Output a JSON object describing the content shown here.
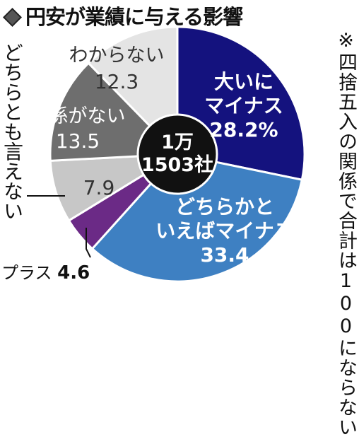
{
  "title": "円安が業績に与える影響",
  "note": "※四捨五入の関係で合計は100にならない",
  "chart_data": {
    "type": "pie",
    "center_label": [
      "1万",
      "1503社"
    ],
    "slices": [
      {
        "label": [
          "大いに",
          "マイナス"
        ],
        "value": 28.2,
        "value_text": "28.2%",
        "color": "#14127e",
        "text_color": "#ffffff"
      },
      {
        "label": [
          "どちらかと",
          "いえばマイナス"
        ],
        "value": 33.4,
        "value_text": "33.4",
        "color": "#3e80c2",
        "text_color": "#ffffff"
      },
      {
        "label": [
          "プラス"
        ],
        "value": 4.6,
        "value_text": "4.6",
        "color": "#6b2a86",
        "text_color": "#ffffff"
      },
      {
        "label": [
          "どちらとも言えない"
        ],
        "value": 7.9,
        "value_text": "7.9",
        "color": "#c7c7c7",
        "text_color": "#333333"
      },
      {
        "label": [
          "関係がない"
        ],
        "value": 13.5,
        "value_text": "13.5",
        "color": "#6e6e6e",
        "text_color": "#ffffff"
      },
      {
        "label": [
          "わからない"
        ],
        "value": 12.3,
        "value_text": "12.3",
        "color": "#e4e4e4",
        "text_color": "#333333"
      }
    ]
  }
}
